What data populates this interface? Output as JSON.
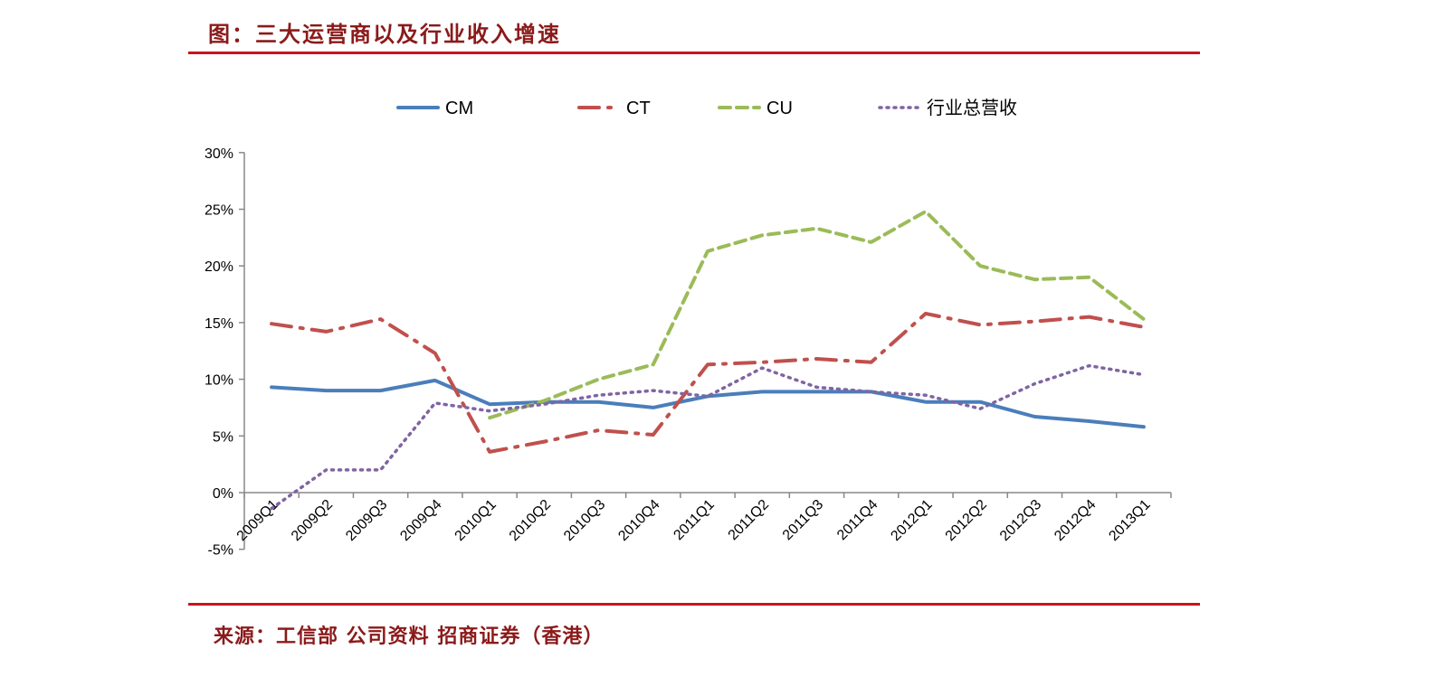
{
  "header": {
    "title": "图：三大运营商以及行业收入增速"
  },
  "footer": {
    "source": "来源：工信部 公司资料 招商证券（香港）"
  },
  "colors": {
    "CM": "#4a7ebb",
    "CT": "#c0504d",
    "CU": "#9bbb59",
    "industry": "#8064a2",
    "rule": "#c8141e",
    "title": "#8b1a1a"
  },
  "chart_data": {
    "type": "line",
    "title": "",
    "xlabel": "",
    "ylabel": "",
    "ylim": [
      -5,
      30
    ],
    "yticks": [
      "-5%",
      "0%",
      "5%",
      "10%",
      "15%",
      "20%",
      "25%",
      "30%"
    ],
    "ytick_values": [
      -5,
      0,
      5,
      10,
      15,
      20,
      25,
      30
    ],
    "grid": false,
    "legend": "top",
    "categories": [
      "2009Q1",
      "2009Q2",
      "2009Q3",
      "2009Q4",
      "2010Q1",
      "2010Q2",
      "2010Q3",
      "2010Q4",
      "2011Q1",
      "2011Q2",
      "2011Q3",
      "2011Q4",
      "2012Q1",
      "2012Q2",
      "2012Q3",
      "2012Q4",
      "2013Q1"
    ],
    "series": [
      {
        "name": "CM",
        "style": "solid",
        "values": [
          9.3,
          9.0,
          9.0,
          9.9,
          7.8,
          8.0,
          8.0,
          7.5,
          8.5,
          8.9,
          8.9,
          8.9,
          8.0,
          8.0,
          6.7,
          6.3,
          5.8
        ]
      },
      {
        "name": "CT",
        "style": "dash-dot",
        "values": [
          14.9,
          14.2,
          15.3,
          12.3,
          3.6,
          4.5,
          5.5,
          5.1,
          11.3,
          11.5,
          11.8,
          11.5,
          15.8,
          14.8,
          15.1,
          15.5,
          14.6
        ]
      },
      {
        "name": "CU",
        "style": "dashed",
        "values": [
          null,
          null,
          null,
          null,
          6.6,
          8.1,
          10.0,
          11.3,
          21.3,
          22.7,
          23.3,
          22.1,
          24.8,
          20.0,
          18.8,
          19.0,
          15.3
        ]
      },
      {
        "name": "行业总营收",
        "style": "dotted",
        "values": [
          -1.4,
          2.0,
          2.0,
          7.9,
          7.2,
          7.8,
          8.6,
          9.0,
          8.5,
          11.0,
          9.3,
          8.9,
          8.6,
          7.4,
          9.6,
          11.2,
          10.4
        ]
      }
    ]
  }
}
